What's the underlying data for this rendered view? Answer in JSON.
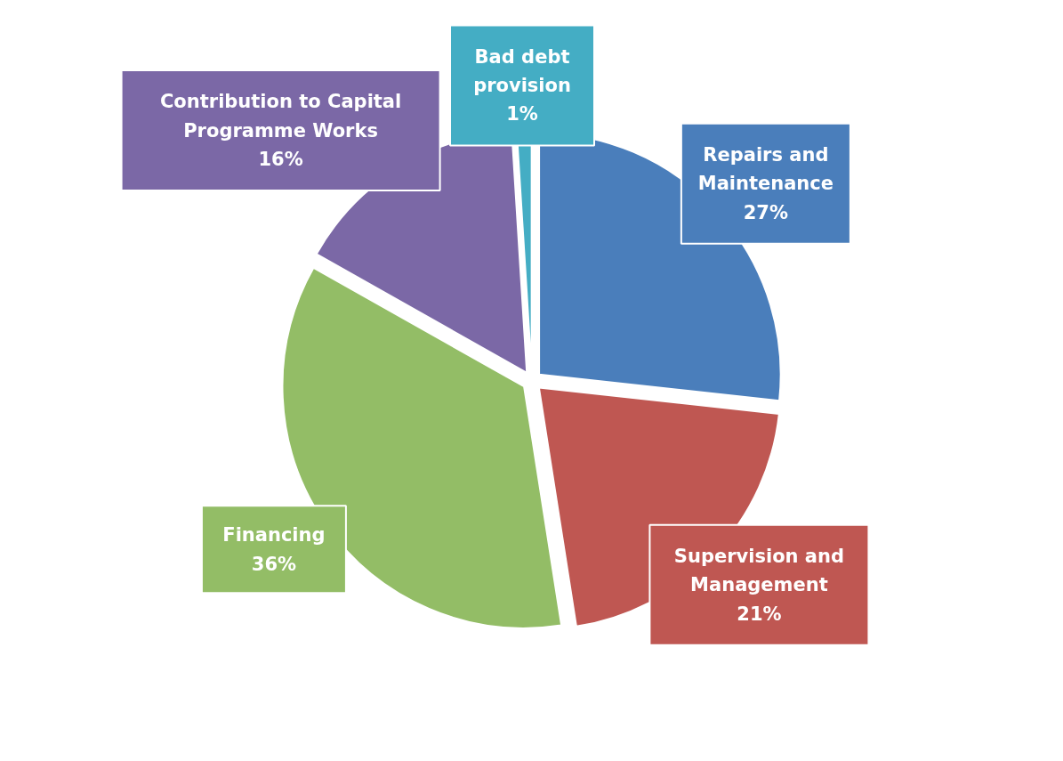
{
  "chart_data": {
    "type": "pie",
    "categories": [
      "Repairs and Maintenance",
      "Supervision and Management",
      "Financing",
      "Contribution to Capital Programme Works",
      "Bad debt provision"
    ],
    "values": [
      27,
      21,
      36,
      16,
      1
    ],
    "colors": [
      "#4a7ebb",
      "#bf5752",
      "#93bd66",
      "#7b68a6",
      "#44adc4"
    ],
    "value_labels": [
      "27%",
      "21%",
      "36%",
      "16%",
      "1%"
    ]
  }
}
